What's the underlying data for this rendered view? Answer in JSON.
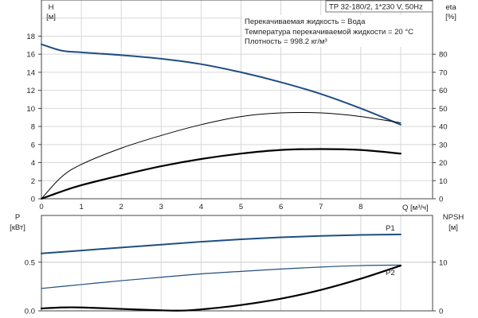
{
  "title_box": "TP 32-180/2, 1*230 V, 50Hz",
  "info": [
    "Перекачиваемая жидкость = Вода",
    "Температура перекачиваемой жидкости = 20 °C",
    "Плотность = 998.2 кг/м³"
  ],
  "colors": {
    "blue": "#1f4e80",
    "black": "#000000",
    "grid": "#d8d8d8"
  },
  "chart_data": [
    {
      "type": "line",
      "xlabel": "Q [м³/ч]",
      "ylabel_left": [
        "H",
        "[м]"
      ],
      "ylabel_right": [
        "eta",
        "[%]"
      ],
      "x_ticks": [
        0,
        1,
        2,
        3,
        4,
        5,
        6,
        7,
        8
      ],
      "y_left_ticks": [
        0,
        2,
        4,
        6,
        8,
        10,
        12,
        14,
        16,
        18
      ],
      "y_right_ticks": [
        0,
        10,
        20,
        30,
        40,
        50,
        60,
        70,
        80
      ],
      "xlim": [
        0,
        9.8
      ],
      "ylim_left": [
        0,
        22
      ],
      "ylim_right": [
        0,
        110
      ],
      "grid": true,
      "series": [
        {
          "axis": "left",
          "color": "blue",
          "width": 2,
          "x": [
            0,
            0.5,
            1,
            2,
            3,
            4,
            5,
            6,
            7,
            8,
            9
          ],
          "y": [
            17.1,
            16.4,
            16.2,
            15.9,
            15.5,
            14.9,
            14.0,
            12.9,
            11.6,
            10.0,
            8.2
          ]
        },
        {
          "axis": "right",
          "color": "black",
          "width": 1,
          "x": [
            0,
            0.5,
            1,
            2,
            3,
            4,
            5,
            6,
            7,
            8,
            9
          ],
          "y": [
            0,
            12,
            19,
            28,
            35,
            41,
            45.5,
            47.5,
            47.5,
            45.5,
            42
          ]
        },
        {
          "axis": "right",
          "color": "black",
          "width": 2.2,
          "x": [
            0,
            0.5,
            1,
            2,
            3,
            4,
            5,
            6,
            7,
            8,
            9
          ],
          "y": [
            0,
            4,
            7.5,
            13,
            18,
            22,
            25,
            27,
            27.5,
            27,
            25
          ]
        }
      ]
    },
    {
      "type": "line",
      "ylabel_left": [
        "P",
        "[кВт]"
      ],
      "ylabel_right": [
        "NPSH",
        "[м]"
      ],
      "y_left_ticks": [
        "0.0",
        "0.5"
      ],
      "y_right_ticks": [
        0,
        10
      ],
      "xlim": [
        0,
        9.8
      ],
      "ylim_left": [
        0,
        0.98
      ],
      "ylim_right": [
        0,
        19.6
      ],
      "grid": true,
      "series": [
        {
          "name": "P1",
          "axis": "left",
          "color": "blue",
          "width": 2,
          "x": [
            0,
            1,
            2,
            3,
            4,
            5,
            6,
            7,
            8,
            9
          ],
          "y": [
            0.59,
            0.62,
            0.65,
            0.68,
            0.71,
            0.735,
            0.755,
            0.77,
            0.78,
            0.785
          ]
        },
        {
          "name": "P2",
          "axis": "left",
          "color": "blue",
          "width": 1.2,
          "x": [
            0,
            1,
            2,
            3,
            4,
            5,
            6,
            7,
            8,
            9
          ],
          "y": [
            0.23,
            0.27,
            0.31,
            0.345,
            0.38,
            0.405,
            0.43,
            0.45,
            0.465,
            0.47
          ]
        },
        {
          "axis": "right",
          "color": "black",
          "width": 2.2,
          "x": [
            0,
            0.5,
            1,
            2,
            3,
            3.5,
            4,
            5,
            6,
            7,
            8,
            9
          ],
          "y": [
            0.5,
            0.7,
            0.7,
            0.4,
            0.1,
            0.05,
            0.3,
            1.2,
            2.5,
            4.3,
            6.6,
            9.3
          ]
        }
      ]
    }
  ]
}
